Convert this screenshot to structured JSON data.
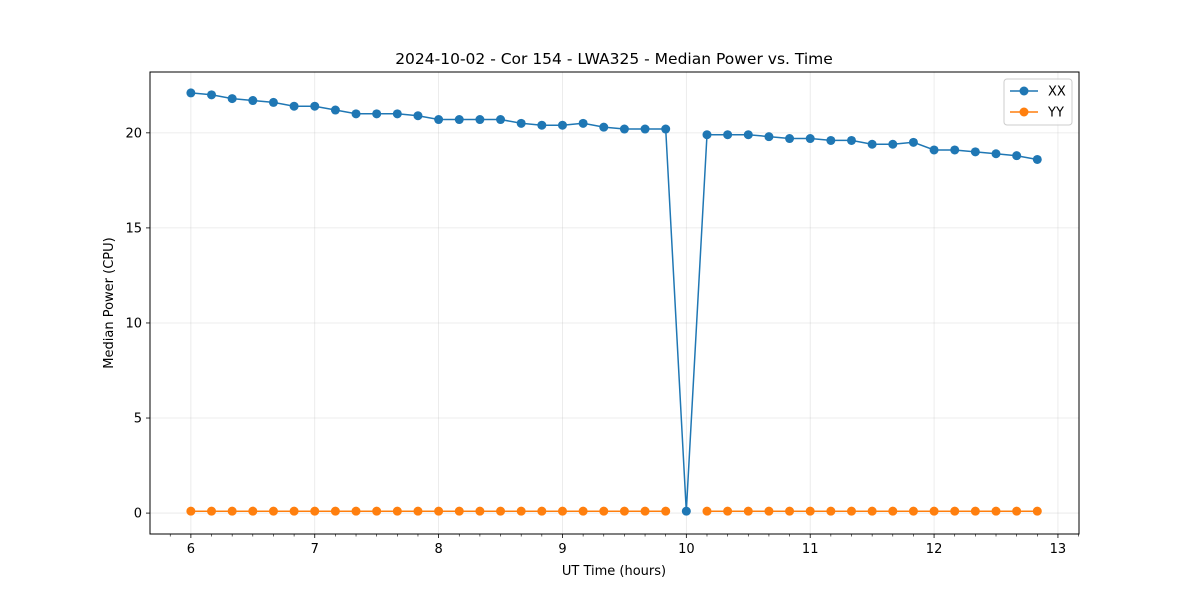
{
  "chart_data": {
    "type": "line",
    "title": "2024-10-02 - Cor 154 - LWA325 - Median Power vs. Time",
    "xlabel": "UT Time (hours)",
    "ylabel": "Median Power (CPU)",
    "xlim": [
      5.67,
      13.17
    ],
    "ylim": [
      -1.1,
      23.2
    ],
    "xticks": [
      6,
      7,
      8,
      9,
      10,
      11,
      12,
      13
    ],
    "yticks": [
      0,
      5,
      10,
      15,
      20
    ],
    "grid": true,
    "legend_position": "top-right",
    "x": [
      6.0,
      6.1667,
      6.3333,
      6.5,
      6.6667,
      6.8333,
      7.0,
      7.1667,
      7.3333,
      7.5,
      7.6667,
      7.8333,
      8.0,
      8.1667,
      8.3333,
      8.5,
      8.6667,
      8.8333,
      9.0,
      9.1667,
      9.3333,
      9.5,
      9.6667,
      9.8333,
      10.0,
      10.1667,
      10.3333,
      10.5,
      10.6667,
      10.8333,
      11.0,
      11.1667,
      11.3333,
      11.5,
      11.6667,
      11.8333,
      12.0,
      12.1667,
      12.3333,
      12.5,
      12.6667,
      12.8333
    ],
    "series": [
      {
        "name": "XX",
        "color": "#1f77b4",
        "values": [
          22.1,
          22.0,
          21.8,
          21.7,
          21.6,
          21.4,
          21.4,
          21.2,
          21.0,
          21.0,
          21.0,
          20.9,
          20.7,
          20.7,
          20.7,
          20.7,
          20.5,
          20.4,
          20.4,
          20.5,
          20.3,
          20.2,
          20.2,
          20.2,
          0.1,
          19.9,
          19.9,
          19.9,
          19.8,
          19.7,
          19.7,
          19.6,
          19.6,
          19.4,
          19.4,
          19.5,
          19.1,
          19.1,
          19.0,
          18.9,
          18.8,
          18.6
        ]
      },
      {
        "name": "YY",
        "color": "#ff7f0e",
        "values": [
          0.1,
          0.1,
          0.1,
          0.1,
          0.1,
          0.1,
          0.1,
          0.1,
          0.1,
          0.1,
          0.1,
          0.1,
          0.1,
          0.1,
          0.1,
          0.1,
          0.1,
          0.1,
          0.1,
          0.1,
          0.1,
          0.1,
          0.1,
          0.1,
          null,
          0.1,
          0.1,
          0.1,
          0.1,
          0.1,
          0.1,
          0.1,
          0.1,
          0.1,
          0.1,
          0.1,
          0.1,
          0.1,
          0.1,
          0.1,
          0.1,
          0.1
        ]
      }
    ]
  }
}
